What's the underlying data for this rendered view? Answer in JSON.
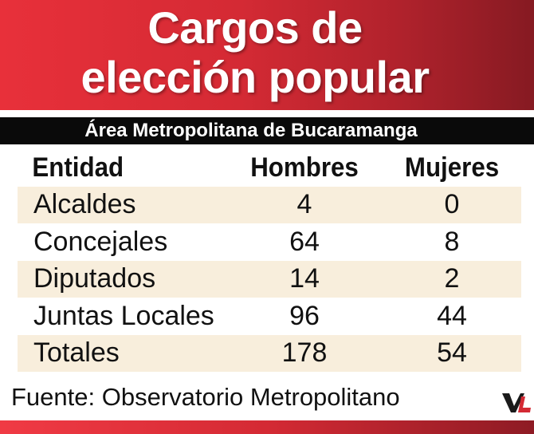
{
  "header": {
    "title_line1": "Cargos de",
    "title_line2": "elección popular",
    "subtitle": "Área Metropolitana de Bucaramanga"
  },
  "chart_data": {
    "type": "table",
    "columns": [
      "Entidad",
      "Hombres",
      "Mujeres"
    ],
    "rows": [
      [
        "Alcaldes",
        "4",
        "0"
      ],
      [
        "Concejales",
        "64",
        "8"
      ],
      [
        "Diputados",
        "14",
        "2"
      ],
      [
        "Juntas Locales",
        "96",
        "44"
      ],
      [
        "Totales",
        "178",
        "54"
      ]
    ]
  },
  "footer": {
    "source": "Fuente: Observatorio Metropolitano",
    "logo_icon": "vl-logo-icon"
  },
  "colors": {
    "header_red": "#d42a34",
    "header_dark": "#861a22",
    "row_shade": "#f8eedc",
    "bar_black": "#0a0a0a"
  }
}
